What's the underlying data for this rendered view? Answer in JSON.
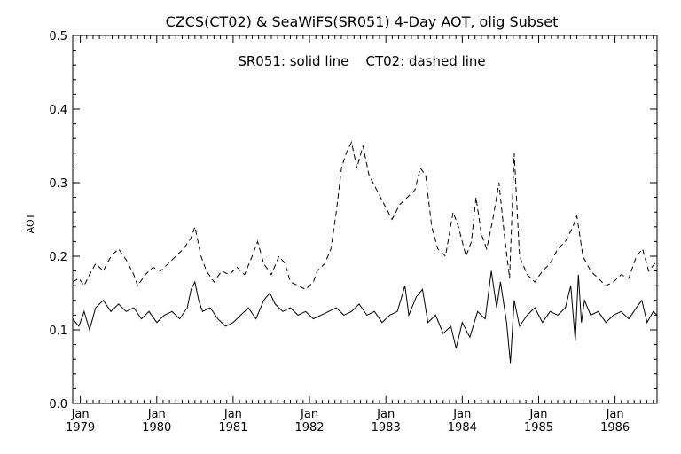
{
  "chart_data": {
    "type": "line",
    "title": "CZCS(CT02) & SeaWiFS(SR051) 4-Day AOT, olig Subset",
    "subtitle": "SR051: solid line    CT02: dashed line",
    "xlabel": "",
    "ylabel": "AOT",
    "ylim": [
      0.0,
      0.5
    ],
    "xlim": [
      1978.9,
      1986.55
    ],
    "grid": false,
    "yticks": [
      "0.0",
      "0.1",
      "0.2",
      "0.3",
      "0.4",
      "0.5"
    ],
    "xticks": [
      {
        "month": "Jan",
        "year": "1979"
      },
      {
        "month": "Jan",
        "year": "1980"
      },
      {
        "month": "Jan",
        "year": "1981"
      },
      {
        "month": "Jan",
        "year": "1982"
      },
      {
        "month": "Jan",
        "year": "1983"
      },
      {
        "month": "Jan",
        "year": "1984"
      },
      {
        "month": "Jan",
        "year": "1985"
      },
      {
        "month": "Jan",
        "year": "1986"
      }
    ],
    "series": [
      {
        "name": "SR051",
        "style": "solid",
        "points": [
          [
            1978.9,
            0.115
          ],
          [
            1978.98,
            0.105
          ],
          [
            1979.05,
            0.125
          ],
          [
            1979.12,
            0.1
          ],
          [
            1979.2,
            0.13
          ],
          [
            1979.3,
            0.14
          ],
          [
            1979.4,
            0.125
          ],
          [
            1979.5,
            0.135
          ],
          [
            1979.6,
            0.125
          ],
          [
            1979.7,
            0.13
          ],
          [
            1979.8,
            0.115
          ],
          [
            1979.9,
            0.125
          ],
          [
            1980.0,
            0.11
          ],
          [
            1980.1,
            0.12
          ],
          [
            1980.2,
            0.125
          ],
          [
            1980.3,
            0.115
          ],
          [
            1980.4,
            0.13
          ],
          [
            1980.45,
            0.155
          ],
          [
            1980.5,
            0.165
          ],
          [
            1980.55,
            0.14
          ],
          [
            1980.6,
            0.125
          ],
          [
            1980.7,
            0.13
          ],
          [
            1980.8,
            0.115
          ],
          [
            1980.9,
            0.105
          ],
          [
            1981.0,
            0.11
          ],
          [
            1981.1,
            0.12
          ],
          [
            1981.2,
            0.13
          ],
          [
            1981.3,
            0.115
          ],
          [
            1981.4,
            0.14
          ],
          [
            1981.48,
            0.15
          ],
          [
            1981.55,
            0.135
          ],
          [
            1981.65,
            0.125
          ],
          [
            1981.75,
            0.13
          ],
          [
            1981.85,
            0.12
          ],
          [
            1981.95,
            0.125
          ],
          [
            1982.05,
            0.115
          ],
          [
            1982.15,
            0.12
          ],
          [
            1982.25,
            0.125
          ],
          [
            1982.35,
            0.13
          ],
          [
            1982.45,
            0.12
          ],
          [
            1982.55,
            0.125
          ],
          [
            1982.65,
            0.135
          ],
          [
            1982.75,
            0.12
          ],
          [
            1982.85,
            0.125
          ],
          [
            1982.95,
            0.11
          ],
          [
            1983.05,
            0.12
          ],
          [
            1983.15,
            0.125
          ],
          [
            1983.25,
            0.16
          ],
          [
            1983.3,
            0.12
          ],
          [
            1983.4,
            0.145
          ],
          [
            1983.48,
            0.155
          ],
          [
            1983.55,
            0.11
          ],
          [
            1983.65,
            0.12
          ],
          [
            1983.75,
            0.095
          ],
          [
            1983.85,
            0.105
          ],
          [
            1983.92,
            0.075
          ],
          [
            1984.0,
            0.11
          ],
          [
            1984.1,
            0.09
          ],
          [
            1984.2,
            0.125
          ],
          [
            1984.3,
            0.115
          ],
          [
            1984.38,
            0.18
          ],
          [
            1984.45,
            0.13
          ],
          [
            1984.5,
            0.165
          ],
          [
            1984.58,
            0.11
          ],
          [
            1984.63,
            0.055
          ],
          [
            1984.68,
            0.14
          ],
          [
            1984.75,
            0.105
          ],
          [
            1984.85,
            0.12
          ],
          [
            1984.95,
            0.13
          ],
          [
            1985.05,
            0.11
          ],
          [
            1985.15,
            0.125
          ],
          [
            1985.25,
            0.12
          ],
          [
            1985.35,
            0.13
          ],
          [
            1985.42,
            0.16
          ],
          [
            1985.48,
            0.085
          ],
          [
            1985.52,
            0.175
          ],
          [
            1985.56,
            0.11
          ],
          [
            1985.6,
            0.14
          ],
          [
            1985.68,
            0.12
          ],
          [
            1985.78,
            0.125
          ],
          [
            1985.88,
            0.11
          ],
          [
            1985.98,
            0.12
          ],
          [
            1986.08,
            0.125
          ],
          [
            1986.18,
            0.115
          ],
          [
            1986.28,
            0.13
          ],
          [
            1986.35,
            0.14
          ],
          [
            1986.42,
            0.11
          ],
          [
            1986.5,
            0.125
          ],
          [
            1986.55,
            0.12
          ]
        ]
      },
      {
        "name": "CT02",
        "style": "dashed",
        "points": [
          [
            1978.9,
            0.165
          ],
          [
            1978.98,
            0.17
          ],
          [
            1979.05,
            0.16
          ],
          [
            1979.12,
            0.175
          ],
          [
            1979.2,
            0.19
          ],
          [
            1979.3,
            0.18
          ],
          [
            1979.4,
            0.2
          ],
          [
            1979.5,
            0.21
          ],
          [
            1979.6,
            0.195
          ],
          [
            1979.7,
            0.175
          ],
          [
            1979.75,
            0.16
          ],
          [
            1979.85,
            0.175
          ],
          [
            1979.95,
            0.185
          ],
          [
            1980.05,
            0.18
          ],
          [
            1980.15,
            0.19
          ],
          [
            1980.25,
            0.2
          ],
          [
            1980.35,
            0.21
          ],
          [
            1980.45,
            0.225
          ],
          [
            1980.5,
            0.24
          ],
          [
            1980.58,
            0.2
          ],
          [
            1980.65,
            0.18
          ],
          [
            1980.75,
            0.165
          ],
          [
            1980.85,
            0.18
          ],
          [
            1980.95,
            0.175
          ],
          [
            1981.05,
            0.185
          ],
          [
            1981.15,
            0.175
          ],
          [
            1981.25,
            0.2
          ],
          [
            1981.32,
            0.22
          ],
          [
            1981.4,
            0.19
          ],
          [
            1981.5,
            0.175
          ],
          [
            1981.6,
            0.2
          ],
          [
            1981.68,
            0.19
          ],
          [
            1981.75,
            0.165
          ],
          [
            1981.85,
            0.16
          ],
          [
            1981.95,
            0.155
          ],
          [
            1982.05,
            0.165
          ],
          [
            1982.1,
            0.18
          ],
          [
            1982.2,
            0.19
          ],
          [
            1982.28,
            0.21
          ],
          [
            1982.35,
            0.26
          ],
          [
            1982.42,
            0.32
          ],
          [
            1982.48,
            0.34
          ],
          [
            1982.55,
            0.355
          ],
          [
            1982.62,
            0.32
          ],
          [
            1982.7,
            0.35
          ],
          [
            1982.78,
            0.31
          ],
          [
            1982.88,
            0.29
          ],
          [
            1982.98,
            0.27
          ],
          [
            1983.08,
            0.25
          ],
          [
            1983.18,
            0.27
          ],
          [
            1983.28,
            0.28
          ],
          [
            1983.38,
            0.29
          ],
          [
            1983.45,
            0.32
          ],
          [
            1983.52,
            0.31
          ],
          [
            1983.6,
            0.24
          ],
          [
            1983.68,
            0.21
          ],
          [
            1983.78,
            0.2
          ],
          [
            1983.88,
            0.26
          ],
          [
            1983.95,
            0.24
          ],
          [
            1984.05,
            0.2
          ],
          [
            1984.12,
            0.22
          ],
          [
            1984.18,
            0.28
          ],
          [
            1984.25,
            0.23
          ],
          [
            1984.32,
            0.21
          ],
          [
            1984.4,
            0.25
          ],
          [
            1984.48,
            0.3
          ],
          [
            1984.55,
            0.23
          ],
          [
            1984.62,
            0.17
          ],
          [
            1984.68,
            0.34
          ],
          [
            1984.75,
            0.2
          ],
          [
            1984.85,
            0.175
          ],
          [
            1984.95,
            0.165
          ],
          [
            1985.05,
            0.18
          ],
          [
            1985.15,
            0.19
          ],
          [
            1985.25,
            0.21
          ],
          [
            1985.35,
            0.22
          ],
          [
            1985.45,
            0.24
          ],
          [
            1985.5,
            0.255
          ],
          [
            1985.58,
            0.2
          ],
          [
            1985.68,
            0.18
          ],
          [
            1985.78,
            0.17
          ],
          [
            1985.88,
            0.16
          ],
          [
            1985.98,
            0.165
          ],
          [
            1986.08,
            0.175
          ],
          [
            1986.18,
            0.17
          ],
          [
            1986.28,
            0.2
          ],
          [
            1986.36,
            0.21
          ],
          [
            1986.44,
            0.18
          ],
          [
            1986.52,
            0.19
          ],
          [
            1986.55,
            0.185
          ]
        ]
      }
    ]
  }
}
